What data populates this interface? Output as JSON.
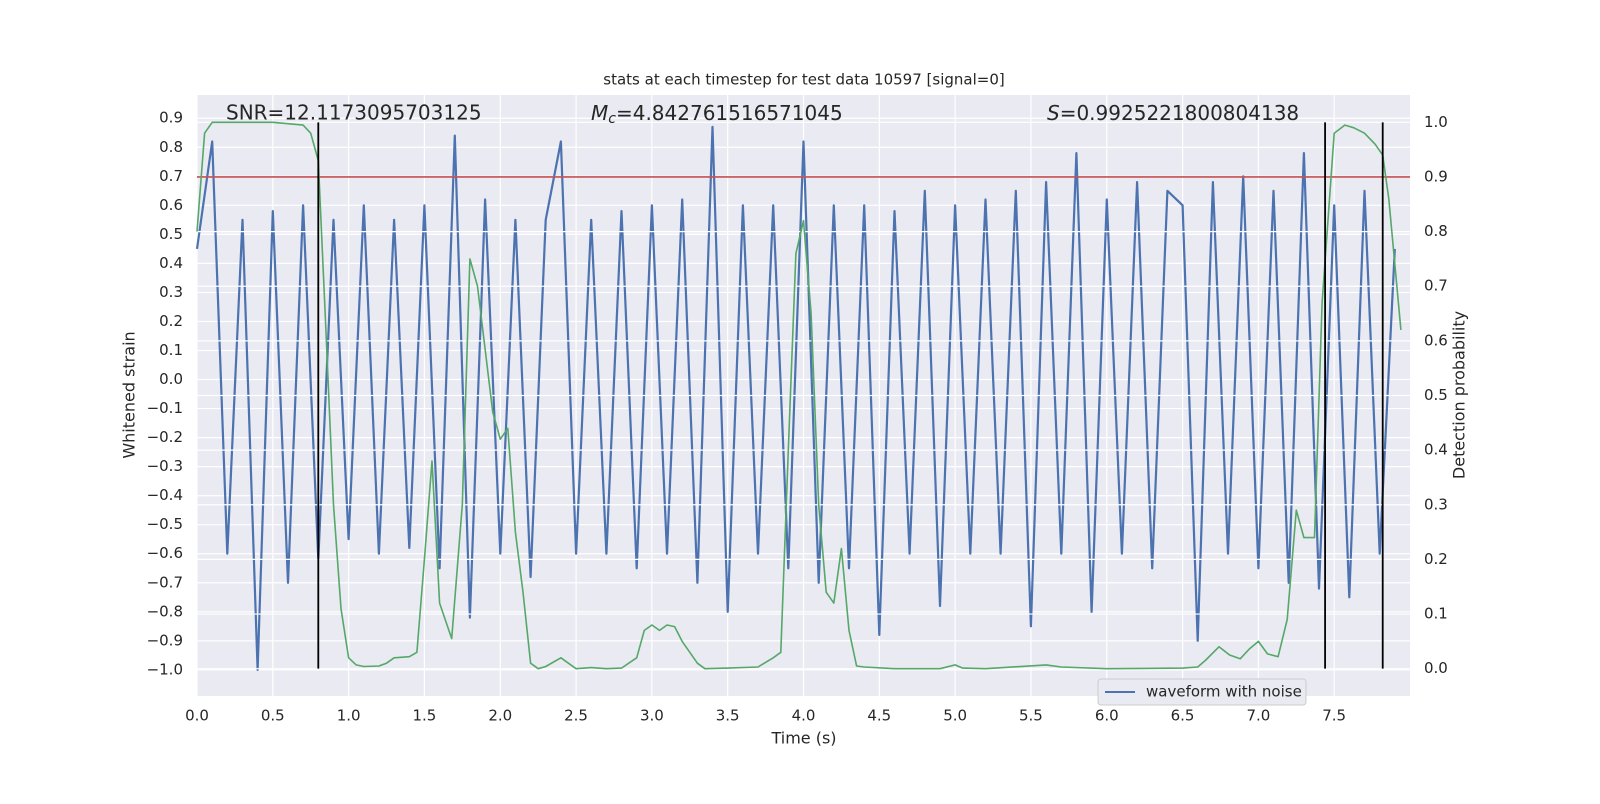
{
  "chart_data": {
    "type": "line",
    "title": "stats at each timestep for test data 10597 [signal=0]",
    "xlabel": "Time (s)",
    "ylabel": "Whitened strain",
    "y2label": "Detection probability",
    "xlim": [
      0,
      8
    ],
    "ylim": [
      -1.09,
      0.98
    ],
    "y2lim": [
      -0.05,
      1.05
    ],
    "xticks": [
      {
        "value": 0,
        "label": "0.0"
      },
      0.5,
      {
        "value": 1,
        "label": "1.0"
      },
      1.5,
      {
        "value": 2,
        "label": "2.0"
      },
      2.5,
      {
        "value": 3,
        "label": "3.0"
      },
      3.5,
      {
        "value": 4,
        "label": "4.0"
      },
      4.5,
      {
        "value": 5,
        "label": "5.0"
      },
      5.5,
      {
        "value": 6,
        "label": "6.0"
      },
      6.5,
      {
        "value": 7,
        "label": "7.0"
      },
      7.5
    ],
    "yticks": [
      {
        "value": -1.0,
        "label": "−1.0"
      },
      {
        "value": -0.9,
        "label": "−0.9"
      },
      {
        "value": -0.8,
        "label": "−0.8"
      },
      {
        "value": -0.7,
        "label": "−0.7"
      },
      {
        "value": -0.6,
        "label": "−0.6"
      },
      {
        "value": -0.5,
        "label": "−0.5"
      },
      {
        "value": -0.4,
        "label": "−0.4"
      },
      {
        "value": -0.3,
        "label": "−0.3"
      },
      {
        "value": -0.2,
        "label": "−0.2"
      },
      {
        "value": -0.1,
        "label": "−0.1"
      },
      {
        "value": 0,
        "label": "0.0"
      },
      0.1,
      0.2,
      0.3,
      0.4,
      0.5,
      0.6,
      0.7,
      0.8,
      0.9
    ],
    "y2ticks": [
      {
        "value": 0,
        "label": "0.0"
      },
      0.1,
      0.2,
      0.3,
      0.4,
      0.5,
      0.6,
      0.7,
      0.8,
      0.9,
      {
        "value": 1,
        "label": "1.0"
      }
    ],
    "grid": true,
    "legend": "lower right",
    "series": [
      {
        "name": "waveform with noise",
        "color": "#4c72b0",
        "axis": "y",
        "x": [
          0.0,
          0.1,
          0.2,
          0.3,
          0.4,
          0.5,
          0.6,
          0.7,
          0.8,
          0.9,
          1.0,
          1.1,
          1.2,
          1.3,
          1.4,
          1.5,
          1.6,
          1.7,
          1.8,
          1.9,
          2.0,
          2.1,
          2.2,
          2.3,
          2.4,
          2.5,
          2.6,
          2.7,
          2.8,
          2.9,
          3.0,
          3.1,
          3.2,
          3.3,
          3.4,
          3.5,
          3.6,
          3.7,
          3.8,
          3.9,
          4.0,
          4.1,
          4.2,
          4.3,
          4.4,
          4.5,
          4.6,
          4.7,
          4.8,
          4.9,
          5.0,
          5.1,
          5.2,
          5.3,
          5.4,
          5.5,
          5.6,
          5.7,
          5.8,
          5.9,
          6.0,
          6.1,
          6.2,
          6.3,
          6.4,
          6.5,
          6.6,
          6.7,
          6.8,
          6.9,
          7.0,
          7.1,
          7.2,
          7.3,
          7.4,
          7.5,
          7.6,
          7.7,
          7.8,
          7.9
        ],
        "values": [
          0.45,
          0.82,
          -0.6,
          0.55,
          -1.0,
          0.58,
          -0.7,
          0.6,
          -0.62,
          0.55,
          -0.55,
          0.6,
          -0.6,
          0.55,
          -0.58,
          0.6,
          -0.65,
          0.84,
          -0.82,
          0.62,
          -0.6,
          0.55,
          -0.68,
          0.55,
          0.82,
          -0.6,
          0.55,
          -0.6,
          0.58,
          -0.65,
          0.6,
          -0.6,
          0.62,
          -0.7,
          0.87,
          -0.8,
          0.6,
          -0.6,
          0.6,
          -0.65,
          0.82,
          -0.7,
          0.6,
          -0.65,
          0.6,
          -0.88,
          0.58,
          -0.6,
          0.65,
          -0.78,
          0.6,
          -0.6,
          0.62,
          -0.6,
          0.65,
          -0.85,
          0.68,
          -0.6,
          0.78,
          -0.8,
          0.62,
          -0.6,
          0.68,
          -0.65,
          0.65,
          0.6,
          -0.9,
          0.68,
          -0.6,
          0.7,
          -0.65,
          0.65,
          -0.7,
          0.78,
          -0.72,
          0.6,
          -0.75,
          0.65,
          -0.6,
          0.45
        ]
      },
      {
        "color": "#55a868",
        "axis": "y2",
        "x": [
          0.0,
          0.05,
          0.1,
          0.3,
          0.5,
          0.7,
          0.75,
          0.8,
          0.85,
          0.9,
          0.95,
          1.0,
          1.05,
          1.1,
          1.2,
          1.25,
          1.3,
          1.4,
          1.45,
          1.5,
          1.55,
          1.6,
          1.68,
          1.75,
          1.8,
          1.85,
          1.95,
          2.0,
          2.05,
          2.1,
          2.15,
          2.2,
          2.25,
          2.3,
          2.4,
          2.5,
          2.6,
          2.7,
          2.8,
          2.9,
          2.95,
          3.0,
          3.05,
          3.1,
          3.15,
          3.2,
          3.3,
          3.35,
          3.5,
          3.7,
          3.8,
          3.85,
          3.9,
          3.95,
          4.0,
          4.05,
          4.1,
          4.15,
          4.2,
          4.25,
          4.3,
          4.35,
          4.4,
          4.6,
          4.9,
          5.0,
          5.05,
          5.2,
          5.6,
          5.7,
          6.0,
          6.5,
          6.6,
          6.65,
          6.74,
          6.81,
          6.88,
          6.94,
          7.0,
          7.06,
          7.13,
          7.19,
          7.25,
          7.3,
          7.37,
          7.42,
          7.5,
          7.57,
          7.63,
          7.7,
          7.77,
          7.82,
          7.86,
          7.94
        ],
        "values": [
          0.8,
          0.98,
          1.0,
          1.0,
          1.0,
          0.995,
          0.98,
          0.93,
          0.62,
          0.3,
          0.11,
          0.02,
          0.007,
          0.004,
          0.005,
          0.01,
          0.02,
          0.022,
          0.03,
          0.2,
          0.38,
          0.12,
          0.055,
          0.3,
          0.75,
          0.7,
          0.47,
          0.42,
          0.44,
          0.25,
          0.14,
          0.01,
          0.0,
          0.004,
          0.02,
          0.0,
          0.002,
          0.0,
          0.001,
          0.02,
          0.07,
          0.08,
          0.07,
          0.08,
          0.077,
          0.05,
          0.01,
          0.0,
          0.001,
          0.003,
          0.02,
          0.03,
          0.4,
          0.76,
          0.82,
          0.65,
          0.3,
          0.14,
          0.12,
          0.22,
          0.07,
          0.005,
          0.003,
          0.0,
          0.0,
          0.007,
          0.001,
          0.0,
          0.007,
          0.003,
          0.0,
          0.001,
          0.003,
          0.015,
          0.04,
          0.025,
          0.018,
          0.036,
          0.05,
          0.027,
          0.022,
          0.09,
          0.29,
          0.24,
          0.24,
          0.67,
          0.98,
          0.995,
          0.99,
          0.98,
          0.96,
          0.94,
          0.86,
          0.62
        ]
      }
    ],
    "hlines": [
      {
        "value": 0.9,
        "axis": "y2",
        "color": "#c44e52"
      }
    ],
    "vlines": {
      "x": [
        0.8,
        7.44,
        7.82
      ],
      "y2_span": [
        0,
        1
      ],
      "color": "#000000"
    },
    "annotations": [
      {
        "text": "SNR=12.1173095703125"
      },
      {
        "parts": [
          "M",
          "c",
          "=4.842761516571045"
        ]
      },
      {
        "parts": [
          "S",
          "=0.9925221800804138"
        ]
      }
    ]
  }
}
